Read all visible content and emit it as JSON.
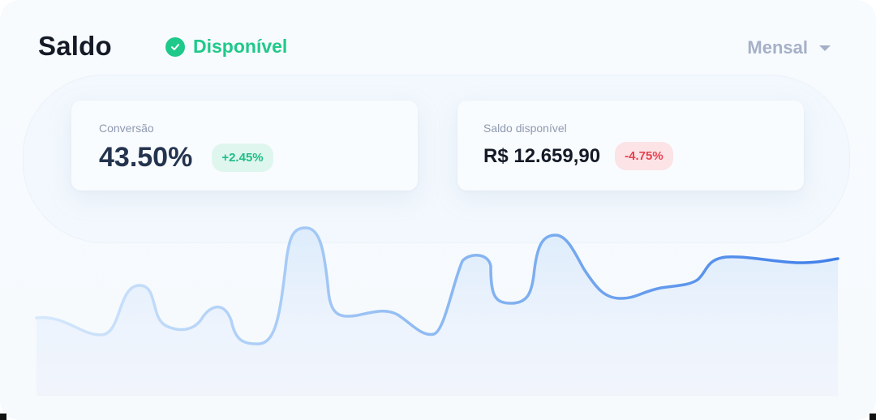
{
  "header": {
    "title": "Saldo",
    "status_label": "Disponível",
    "period_label": "Mensal"
  },
  "cards": [
    {
      "label": "Conversão",
      "value": "43.50%",
      "change": "+2.45%",
      "trend": "up"
    },
    {
      "label": "Saldo disponível",
      "value": "R$ 12.659,90",
      "change": "-4.75%",
      "trend": "down"
    }
  ],
  "colors": {
    "accent_green": "#1fc98a",
    "accent_red": "#e8414f",
    "line_start": "#cfe3fb",
    "line_end": "#3f7ee8"
  },
  "icons": {
    "status": "check-circle-icon",
    "period": "chevron-down-icon"
  }
}
